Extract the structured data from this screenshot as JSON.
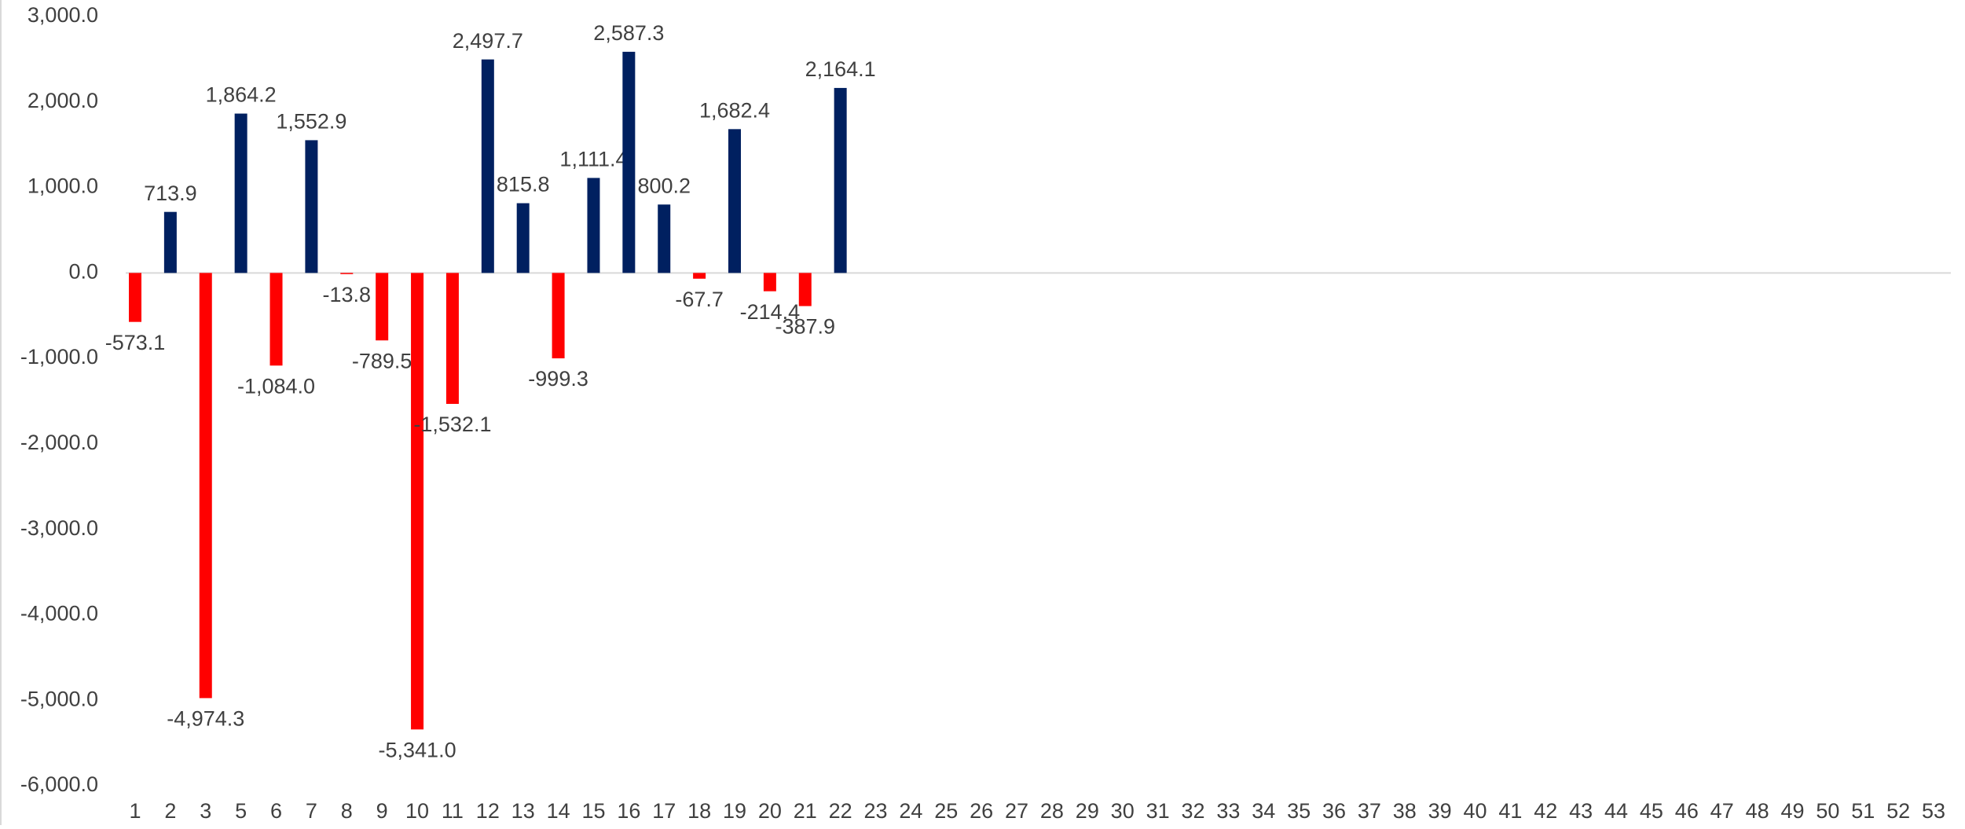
{
  "chart_data": {
    "type": "bar",
    "categories": [
      "1",
      "2",
      "3",
      "5",
      "6",
      "7",
      "8",
      "9",
      "10",
      "11",
      "12",
      "13",
      "14",
      "15",
      "16",
      "17",
      "18",
      "19",
      "20",
      "21",
      "22",
      "23",
      "24",
      "25",
      "26",
      "27",
      "28",
      "29",
      "30",
      "31",
      "32",
      "33",
      "34",
      "35",
      "36",
      "37",
      "38",
      "39",
      "40",
      "41",
      "42",
      "43",
      "44",
      "45",
      "46",
      "47",
      "48",
      "49",
      "50",
      "51",
      "52",
      "53"
    ],
    "values": [
      -573.1,
      713.9,
      -4974.3,
      1864.2,
      -1084.0,
      1552.9,
      -13.8,
      -789.5,
      -5341.0,
      -1532.1,
      2497.7,
      815.8,
      -999.3,
      1111.4,
      2587.3,
      800.2,
      -67.7,
      1682.4,
      -214.4,
      -387.9,
      2164.1,
      null,
      null,
      null,
      null,
      null,
      null,
      null,
      null,
      null,
      null,
      null,
      null,
      null,
      null,
      null,
      null,
      null,
      null,
      null,
      null,
      null,
      null,
      null,
      null,
      null,
      null,
      null,
      null,
      null,
      null,
      null
    ],
    "value_labels": [
      "-573.1",
      "713.9",
      "-4,974.3",
      "1,864.2",
      "-1,084.0",
      "1,552.9",
      "-13.8",
      "-789.5",
      "-5,341.0",
      "-1,532.1",
      "2,497.7",
      "815.8",
      "-999.3",
      "1,111.4",
      "2,587.3",
      "800.2",
      "-67.7",
      "1,682.4",
      "-214.4",
      "-387.9",
      "2,164.1",
      null,
      null,
      null,
      null,
      null,
      null,
      null,
      null,
      null,
      null,
      null,
      null,
      null,
      null,
      null,
      null,
      null,
      null,
      null,
      null,
      null,
      null,
      null,
      null,
      null,
      null,
      null,
      null,
      null,
      null,
      null
    ],
    "positive_color": "#002060",
    "negative_color": "#ff0000",
    "ylim": [
      -6000,
      3000
    ],
    "yticks": [
      {
        "value": -6000,
        "label": "-6,000.0"
      },
      {
        "value": -5000,
        "label": "-5,000.0"
      },
      {
        "value": -4000,
        "label": "-4,000.0"
      },
      {
        "value": -3000,
        "label": "-3,000.0"
      },
      {
        "value": -2000,
        "label": "-2,000.0"
      },
      {
        "value": -1000,
        "label": "-1,000.0"
      },
      {
        "value": 0,
        "label": "0.0"
      },
      {
        "value": 1000,
        "label": "1,000.0"
      },
      {
        "value": 2000,
        "label": "2,000.0"
      },
      {
        "value": 3000,
        "label": "3,000.0"
      }
    ],
    "grid": false
  }
}
